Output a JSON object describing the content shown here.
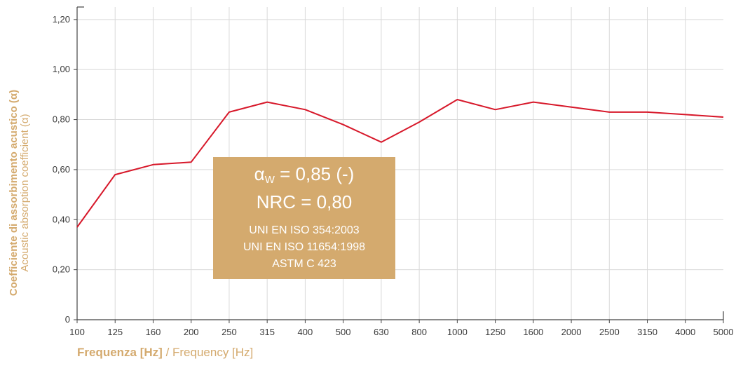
{
  "chart_data": {
    "type": "line",
    "categories": [
      "100",
      "125",
      "160",
      "200",
      "250",
      "315",
      "400",
      "500",
      "630",
      "800",
      "1000",
      "1250",
      "1600",
      "2000",
      "2500",
      "3150",
      "4000",
      "5000"
    ],
    "series": [
      {
        "values": [
          0.37,
          0.58,
          0.62,
          0.63,
          0.83,
          0.87,
          0.84,
          0.78,
          0.71,
          0.79,
          0.88,
          0.84,
          0.87,
          0.85,
          0.83,
          0.83,
          0.82,
          0.81
        ]
      }
    ],
    "ylim": [
      0,
      1.25
    ],
    "yticks": [
      0,
      0.2,
      0.4,
      0.6,
      0.8,
      1.0,
      1.2
    ],
    "ytick_labels": [
      "0",
      "0,20",
      "0,40",
      "0,60",
      "0,80",
      "1,00",
      "1,20"
    ],
    "xlabel": {
      "bold": "Frequenza [Hz]",
      "light": " / Frequency [Hz]"
    },
    "ylabel": {
      "bold": "Coefficiente di assorbimento acustico (α)",
      "light": "Acoustic absorption coefficient (α)"
    },
    "grid": true,
    "colors": {
      "line": "#d7182a",
      "accent": "#d4aa6e",
      "grid": "#d9d9d9",
      "axis": "#444444"
    },
    "annotation": {
      "alpha_symbol": "α",
      "alpha_sub": "W",
      "alpha_value": " = 0,85 (-)",
      "nrc": "NRC = 0,80",
      "standards": [
        "UNI EN ISO 354:2003",
        "UNI EN ISO 11654:1998",
        "ASTM C 423"
      ]
    }
  }
}
